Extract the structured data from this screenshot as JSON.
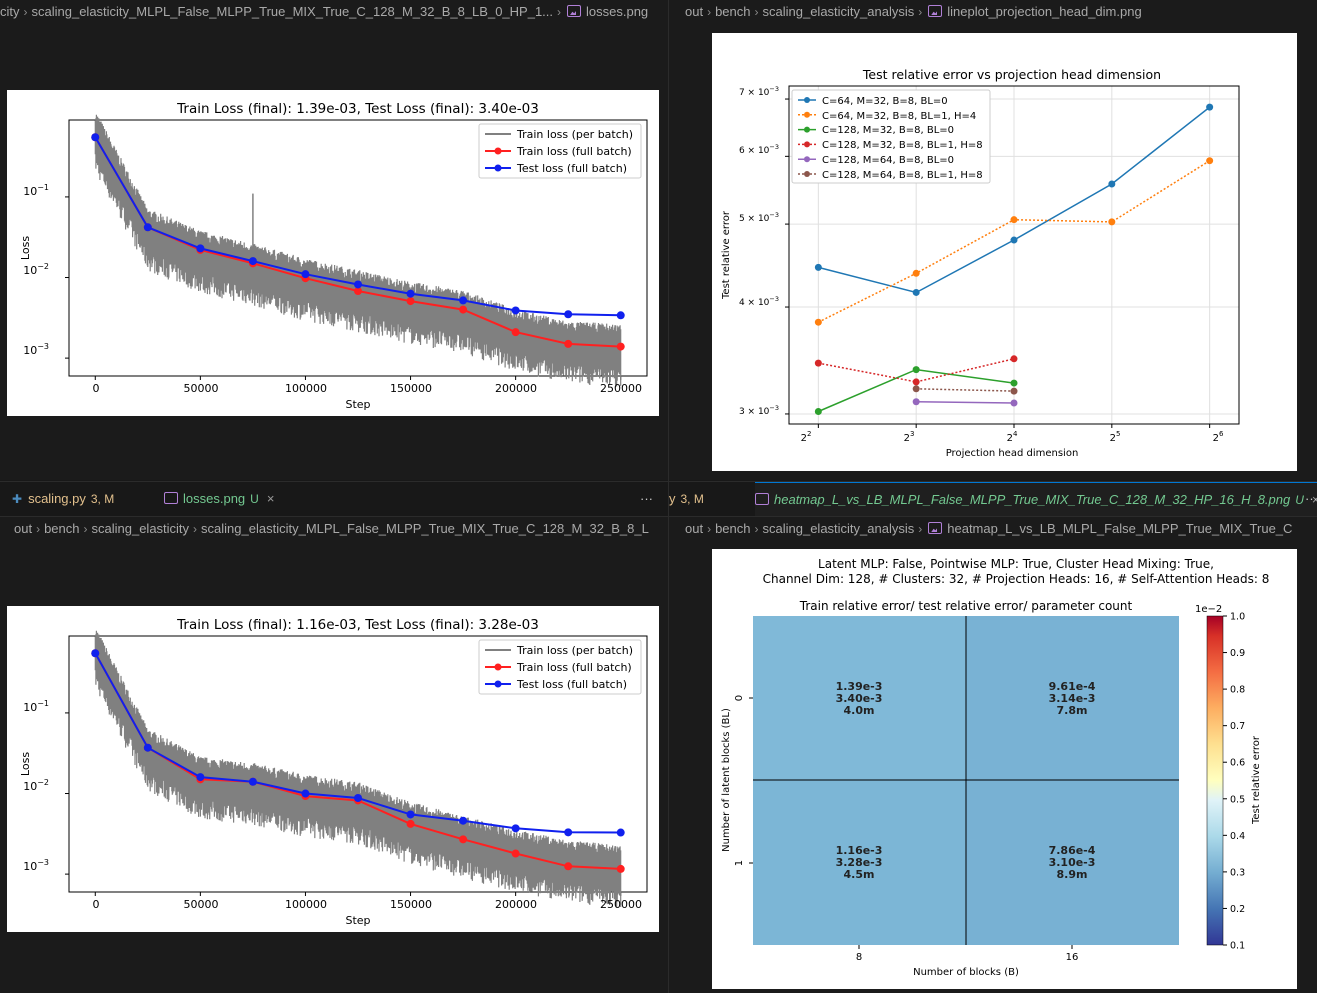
{
  "top_left": {
    "breadcrumb": [
      "city",
      "scaling_elasticity_MLPL_False_MLPP_True_MIX_True_C_128_M_32_B_8_LB_0_HP_1...",
      "losses.png"
    ],
    "figure": {
      "title": "Train Loss (final): 1.39e-03, Test Loss (final): 3.40e-03",
      "xlabel": "Step",
      "ylabel": "Loss",
      "xticks": [
        "0",
        "50000",
        "100000",
        "150000",
        "200000",
        "250000"
      ],
      "yticks": [
        "10",
        "10",
        "10"
      ],
      "ytick_exp": [
        "−1",
        "−2",
        "−3"
      ],
      "legend": [
        "Train loss (per batch)",
        "Train loss (full batch)",
        "Test loss (full batch)"
      ]
    }
  },
  "top_right": {
    "breadcrumb": [
      "out",
      "bench",
      "scaling_elasticity_analysis",
      "lineplot_projection_head_dim.png"
    ],
    "figure": {
      "title": "Test relative error vs projection head dimension",
      "xlabel": "Projection head dimension",
      "ylabel": "Test relative error",
      "xticks": [
        "2",
        "2",
        "2",
        "2",
        "2"
      ],
      "xtick_exp": [
        "2",
        "3",
        "4",
        "5",
        "6"
      ],
      "yticks": [
        "7 × 10",
        "6 × 10",
        "5 × 10",
        "4 × 10",
        "3 × 10"
      ],
      "ytick_exp": [
        "−3",
        "−3",
        "−3",
        "−3",
        "−3"
      ],
      "legend": [
        "C=64, M=32, B=8, BL=0",
        "C=64, M=32, B=8, BL=1, H=4",
        "C=128, M=32, B=8, BL=0",
        "C=128, M=32, B=8, BL=1, H=8",
        "C=128, M=64, B=8, BL=0",
        "C=128, M=64, B=8, BL=1, H=8"
      ]
    }
  },
  "bottom_left": {
    "tabs": [
      {
        "label": "scaling.py",
        "status": "3, M"
      },
      {
        "label": "losses.png",
        "status": "U",
        "close": "×"
      }
    ],
    "more": "···",
    "breadcrumb": [
      "out",
      "bench",
      "scaling_elasticity",
      "scaling_elasticity_MLPL_False_MLPP_True_MIX_True_C_128_M_32_B_8_L"
    ],
    "figure": {
      "title": "Train Loss (final): 1.16e-03, Test Loss (final): 3.28e-03",
      "xlabel": "Step",
      "ylabel": "Loss",
      "xticks": [
        "0",
        "50000",
        "100000",
        "150000",
        "200000",
        "250000"
      ],
      "yticks": [
        "10",
        "10",
        "10"
      ],
      "ytick_exp": [
        "−1",
        "−2",
        "−3"
      ],
      "legend": [
        "Train loss (per batch)",
        "Train loss (full batch)",
        "Test loss (full batch)"
      ]
    }
  },
  "bottom_right": {
    "tabs": [
      {
        "label": "y",
        "status": "3, M"
      },
      {
        "label": "heatmap_L_vs_LB_MLPL_False_MLPP_True_MIX_True_C_128_M_32_HP_16_H_8.png",
        "status": "U",
        "close": "×"
      }
    ],
    "more": "···",
    "breadcrumb": [
      "out",
      "bench",
      "scaling_elasticity_analysis",
      "heatmap_L_vs_LB_MLPL_False_MLPP_True_MIX_True_C"
    ],
    "figure": {
      "suptitle1": "Latent MLP: False, Pointwise MLP: True, Cluster Head Mixing: True,",
      "suptitle2": "Channel Dim: 128, # Clusters: 32, # Projection Heads: 16, # Self-Attention Heads: 8",
      "title": "Train relative error/ test relative error/ parameter count",
      "xlabel": "Number of blocks (B)",
      "ylabel": "Number of latent blocks (BL)",
      "xticks": [
        "8",
        "16"
      ],
      "yticks": [
        "0",
        "1"
      ],
      "cells": [
        [
          "1.39e-3",
          "3.40e-3",
          "4.0m"
        ],
        [
          "9.61e-4",
          "3.14e-3",
          "7.8m"
        ],
        [
          "1.16e-3",
          "3.28e-3",
          "4.5m"
        ],
        [
          "7.86e-4",
          "3.10e-3",
          "8.9m"
        ]
      ],
      "cbar_multiplier": "1e−2",
      "cbar_ticks": [
        "1.0",
        "0.9",
        "0.8",
        "0.7",
        "0.6",
        "0.5",
        "0.4",
        "0.3",
        "0.2",
        "0.1"
      ],
      "cbar_label": "Test relative error"
    }
  },
  "colors": {
    "train_batch": "#808080",
    "train_full": "#ff2020",
    "test_full": "#1020ee"
  },
  "chart_data": [
    {
      "type": "line",
      "title": "Train Loss (final): 1.39e-03, Test Loss (final): 3.40e-03",
      "xlabel": "Step",
      "ylabel": "Loss",
      "xlim": [
        -12500,
        262500
      ],
      "ylim": [
        0.0006,
        0.9
      ],
      "yscale": "log",
      "x": [
        0,
        25000,
        50000,
        75000,
        100000,
        125000,
        150000,
        175000,
        200000,
        225000,
        250000
      ],
      "series": [
        {
          "name": "Train loss (full batch)",
          "values": [
            0.55,
            0.042,
            0.022,
            0.015,
            0.0098,
            0.0068,
            0.0051,
            0.004,
            0.0021,
            0.0015,
            0.00139
          ]
        },
        {
          "name": "Test loss (full batch)",
          "values": [
            0.55,
            0.042,
            0.023,
            0.016,
            0.011,
            0.0082,
            0.0063,
            0.0052,
            0.0039,
            0.0035,
            0.0034
          ]
        },
        {
          "name": "Train loss (per batch)",
          "values": [
            0.5,
            0.03,
            0.016,
            0.011,
            0.0072,
            0.0052,
            0.0037,
            0.0029,
            0.0017,
            0.0012,
            0.0011
          ],
          "spread": [
            2.4,
            0.4
          ],
          "spike": [
            75000,
            0.11
          ]
        }
      ]
    },
    {
      "type": "line",
      "title": "Test relative error vs projection head dimension",
      "xlabel": "Projection head dimension",
      "ylabel": "Test relative error",
      "xscale": "log2",
      "yscale": "log",
      "xlim": [
        1.7,
        6.3
      ],
      "ylim": [
        0.00292,
        0.00725
      ],
      "series": [
        {
          "name": "C=64, M=32, B=8, BL=0",
          "color": "#1f77b4",
          "dash": false,
          "x": [
            2,
            3,
            4,
            5,
            6
          ],
          "values": [
            0.00445,
            0.00416,
            0.00479,
            0.00557,
            0.00685
          ]
        },
        {
          "name": "C=64, M=32, B=8, BL=1, H=4",
          "color": "#ff7f0e",
          "dash": true,
          "x": [
            2,
            3,
            4,
            5,
            6
          ],
          "values": [
            0.00384,
            0.00438,
            0.00506,
            0.00503,
            0.00593
          ]
        },
        {
          "name": "C=128, M=32, B=8, BL=0",
          "color": "#2ca02c",
          "dash": false,
          "x": [
            2,
            3,
            4
          ],
          "values": [
            0.00302,
            0.00338,
            0.00326
          ]
        },
        {
          "name": "C=128, M=32, B=8, BL=1, H=8",
          "color": "#d62728",
          "dash": true,
          "x": [
            2,
            3,
            4
          ],
          "values": [
            0.00344,
            0.00327,
            0.00348
          ]
        },
        {
          "name": "C=128, M=64, B=8, BL=0",
          "color": "#9467bd",
          "dash": false,
          "x": [
            3,
            4
          ],
          "values": [
            0.0031,
            0.00309
          ]
        },
        {
          "name": "C=128, M=64, B=8, BL=1, H=8",
          "color": "#8c564b",
          "dash": true,
          "x": [
            3,
            4
          ],
          "values": [
            0.00321,
            0.00319
          ]
        }
      ]
    },
    {
      "type": "line",
      "title": "Train Loss (final): 1.16e-03, Test Loss (final): 3.28e-03",
      "xlabel": "Step",
      "ylabel": "Loss",
      "xlim": [
        -12500,
        262500
      ],
      "ylim": [
        0.0006,
        0.9
      ],
      "yscale": "log",
      "x": [
        0,
        25000,
        50000,
        75000,
        100000,
        125000,
        150000,
        175000,
        200000,
        225000,
        250000
      ],
      "series": [
        {
          "name": "Train loss (full batch)",
          "values": [
            0.55,
            0.037,
            0.015,
            0.014,
            0.0093,
            0.0082,
            0.0042,
            0.0027,
            0.0018,
            0.00125,
            0.00116
          ]
        },
        {
          "name": "Test loss (full batch)",
          "values": [
            0.55,
            0.037,
            0.016,
            0.014,
            0.01,
            0.0088,
            0.0055,
            0.0046,
            0.0037,
            0.0033,
            0.00328
          ]
        },
        {
          "name": "Train loss (per batch)",
          "values": [
            0.5,
            0.027,
            0.012,
            0.01,
            0.0072,
            0.0058,
            0.0033,
            0.0022,
            0.0015,
            0.0011,
            0.00095
          ],
          "spread": [
            2.4,
            0.4
          ]
        }
      ]
    },
    {
      "type": "heatmap",
      "title": "Train relative error/ test relative error/ parameter count",
      "xlabel": "Number of blocks (B)",
      "ylabel": "Number of latent blocks (BL)",
      "x": [
        "8",
        "16"
      ],
      "y": [
        "0",
        "1"
      ],
      "values": [
        [
          0.0034,
          0.00314
        ],
        [
          0.00328,
          0.0031
        ]
      ],
      "colorbar": {
        "label": "Test relative error",
        "range": [
          0.001,
          0.01
        ],
        "multiplier": "1e-2"
      },
      "cell_colors": [
        [
          "#80b9d8",
          "#79b2d4"
        ],
        [
          "#7cb6d6",
          "#78b1d3"
        ]
      ]
    }
  ]
}
